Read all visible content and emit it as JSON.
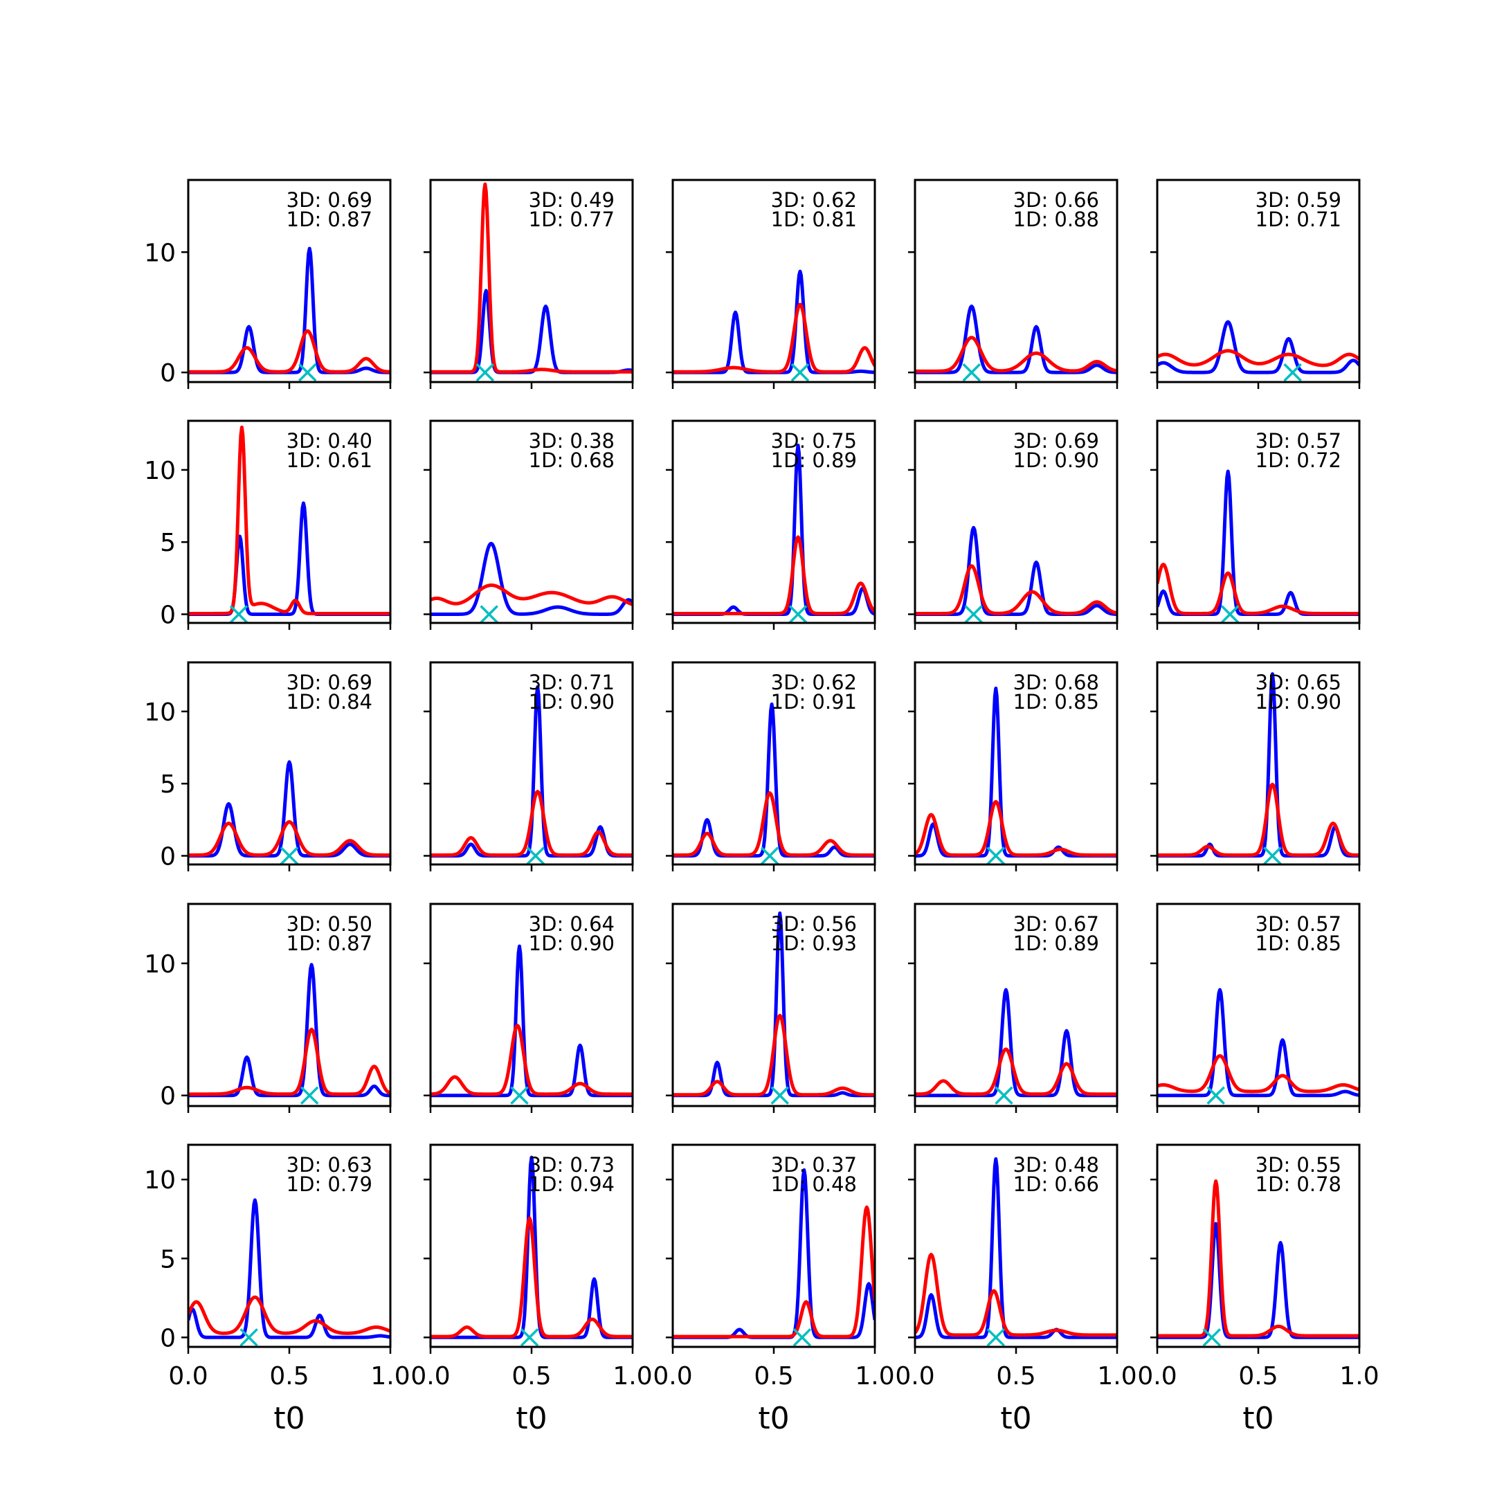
{
  "figure": {
    "xlabel": "t0",
    "colors": {
      "blue": "#0000ff",
      "red": "#ff0000",
      "marker": "#00bfbf",
      "frame": "#000000"
    },
    "x_ticks": [
      "0.0",
      "0.5",
      "1.0"
    ],
    "row_y_ticks": [
      [
        "0",
        "10"
      ],
      [
        "0",
        "5",
        "10"
      ],
      [
        "0",
        "5",
        "10"
      ],
      [
        "0",
        "10"
      ],
      [
        "0",
        "5",
        "10"
      ]
    ]
  },
  "chart_data": {
    "type": "line",
    "layout": "5x5 grid of small multiples, shared y-axis per row, shared x-axis per column",
    "x_range": [
      0,
      1
    ],
    "row_y_ranges": [
      [
        -0.8,
        16
      ],
      [
        -0.6,
        13.4
      ],
      [
        -0.6,
        13.4
      ],
      [
        -0.8,
        14.5
      ],
      [
        -0.6,
        12.2
      ]
    ],
    "row_y_tick_values": [
      [
        0,
        10
      ],
      [
        0,
        5,
        10
      ],
      [
        0,
        5,
        10
      ],
      [
        0,
        10
      ],
      [
        0,
        5,
        10
      ]
    ],
    "series_colors": [
      "blue",
      "red"
    ],
    "panels": [
      {
        "row": 0,
        "col": 0,
        "label_3d": "3D: 0.69",
        "label_1d": "1D: 0.87",
        "marker_x": 0.59,
        "blue": [
          [
            0.3,
            3.8,
            0.022
          ],
          [
            0.6,
            10.3,
            0.017
          ],
          [
            0.88,
            0.35,
            0.03
          ]
        ],
        "red": [
          [
            0.29,
            2.0,
            0.04
          ],
          [
            0.59,
            3.4,
            0.035
          ],
          [
            0.88,
            1.1,
            0.035
          ]
        ],
        "red_base": 0.05
      },
      {
        "row": 0,
        "col": 1,
        "label_3d": "3D: 0.49",
        "label_1d": "1D: 0.77",
        "marker_x": 0.27,
        "blue": [
          [
            0.275,
            6.8,
            0.017
          ],
          [
            0.57,
            5.5,
            0.022
          ],
          [
            0.98,
            0.2,
            0.03
          ]
        ],
        "red": [
          [
            0.27,
            15.6,
            0.018
          ],
          [
            0.55,
            0.2,
            0.05
          ]
        ],
        "red_base": 0.05
      },
      {
        "row": 0,
        "col": 2,
        "label_3d": "3D: 0.62",
        "label_1d": "1D: 0.81",
        "marker_x": 0.63,
        "blue": [
          [
            0.31,
            5.0,
            0.018
          ],
          [
            0.63,
            8.4,
            0.018
          ],
          [
            0.93,
            0.1,
            0.03
          ]
        ],
        "red": [
          [
            0.3,
            0.35,
            0.06
          ],
          [
            0.63,
            5.6,
            0.03
          ],
          [
            0.95,
            2.0,
            0.03
          ]
        ],
        "red_base": 0.05
      },
      {
        "row": 0,
        "col": 3,
        "label_3d": "3D: 0.66",
        "label_1d": "1D: 0.88",
        "marker_x": 0.28,
        "blue": [
          [
            0.28,
            5.5,
            0.027
          ],
          [
            0.6,
            3.8,
            0.022
          ],
          [
            0.9,
            0.6,
            0.03
          ]
        ],
        "red": [
          [
            0.28,
            2.8,
            0.045
          ],
          [
            0.6,
            1.5,
            0.06
          ],
          [
            0.9,
            0.8,
            0.04
          ]
        ],
        "red_base": 0.1
      },
      {
        "row": 0,
        "col": 4,
        "label_3d": "3D: 0.59",
        "label_1d": "1D: 0.71",
        "marker_x": 0.67,
        "blue": [
          [
            0.03,
            0.8,
            0.04
          ],
          [
            0.35,
            4.2,
            0.03
          ],
          [
            0.65,
            2.8,
            0.025
          ],
          [
            0.97,
            1.0,
            0.03
          ]
        ],
        "red": [
          [
            0.04,
            1.0,
            0.06
          ],
          [
            0.35,
            1.3,
            0.07
          ],
          [
            0.65,
            1.0,
            0.07
          ],
          [
            0.95,
            1.0,
            0.05
          ]
        ],
        "red_base": 0.5
      },
      {
        "row": 1,
        "col": 0,
        "label_3d": "3D: 0.40",
        "label_1d": "1D: 0.61",
        "marker_x": 0.25,
        "blue": [
          [
            0.255,
            5.4,
            0.016
          ],
          [
            0.57,
            7.7,
            0.017
          ]
        ],
        "red": [
          [
            0.265,
            12.7,
            0.017
          ],
          [
            0.36,
            0.7,
            0.06
          ],
          [
            0.53,
            0.9,
            0.02
          ]
        ],
        "red_base": 0.05
      },
      {
        "row": 1,
        "col": 1,
        "label_3d": "3D: 0.38",
        "label_1d": "1D: 0.68",
        "marker_x": 0.29,
        "blue": [
          [
            0.3,
            4.9,
            0.04
          ],
          [
            0.63,
            0.5,
            0.06
          ],
          [
            0.98,
            1.0,
            0.03
          ]
        ],
        "red": [
          [
            0.03,
            0.6,
            0.05
          ],
          [
            0.3,
            1.5,
            0.08
          ],
          [
            0.6,
            1.0,
            0.1
          ],
          [
            0.9,
            0.7,
            0.06
          ]
        ],
        "red_base": 0.5
      },
      {
        "row": 1,
        "col": 2,
        "label_3d": "3D: 0.75",
        "label_1d": "1D: 0.89",
        "marker_x": 0.62,
        "blue": [
          [
            0.3,
            0.5,
            0.02
          ],
          [
            0.62,
            11.7,
            0.016
          ],
          [
            0.94,
            1.8,
            0.02
          ]
        ],
        "red": [
          [
            0.62,
            5.3,
            0.025
          ],
          [
            0.93,
            2.1,
            0.03
          ]
        ],
        "red_base": 0.05
      },
      {
        "row": 1,
        "col": 3,
        "label_3d": "3D: 0.69",
        "label_1d": "1D: 0.90",
        "marker_x": 0.29,
        "blue": [
          [
            0.29,
            6.0,
            0.022
          ],
          [
            0.6,
            3.6,
            0.022
          ],
          [
            0.9,
            0.6,
            0.03
          ]
        ],
        "red": [
          [
            0.28,
            3.3,
            0.035
          ],
          [
            0.58,
            1.5,
            0.05
          ],
          [
            0.9,
            0.8,
            0.04
          ]
        ],
        "red_base": 0.05
      },
      {
        "row": 1,
        "col": 4,
        "label_3d": "3D: 0.57",
        "label_1d": "1D: 0.72",
        "marker_x": 0.36,
        "blue": [
          [
            0.03,
            1.6,
            0.02
          ],
          [
            0.35,
            9.9,
            0.017
          ],
          [
            0.66,
            1.5,
            0.02
          ]
        ],
        "red": [
          [
            0.03,
            3.4,
            0.03
          ],
          [
            0.35,
            2.8,
            0.03
          ],
          [
            0.62,
            0.5,
            0.05
          ]
        ],
        "red_base": 0.05
      },
      {
        "row": 2,
        "col": 0,
        "label_3d": "3D: 0.69",
        "label_1d": "1D: 0.84",
        "marker_x": 0.5,
        "blue": [
          [
            0.2,
            3.6,
            0.025
          ],
          [
            0.5,
            6.5,
            0.02
          ],
          [
            0.8,
            0.8,
            0.03
          ]
        ],
        "red": [
          [
            0.2,
            2.2,
            0.04
          ],
          [
            0.5,
            2.3,
            0.04
          ],
          [
            0.8,
            1.0,
            0.04
          ]
        ],
        "red_base": 0.05
      },
      {
        "row": 2,
        "col": 1,
        "label_3d": "3D: 0.71",
        "label_1d": "1D: 0.90",
        "marker_x": 0.52,
        "blue": [
          [
            0.2,
            0.8,
            0.02
          ],
          [
            0.53,
            11.7,
            0.016
          ],
          [
            0.84,
            2.0,
            0.02
          ]
        ],
        "red": [
          [
            0.2,
            1.2,
            0.03
          ],
          [
            0.53,
            4.4,
            0.03
          ],
          [
            0.83,
            1.6,
            0.03
          ]
        ],
        "red_base": 0.05
      },
      {
        "row": 2,
        "col": 2,
        "label_3d": "3D: 0.62",
        "label_1d": "1D: 0.91",
        "marker_x": 0.48,
        "blue": [
          [
            0.17,
            2.5,
            0.02
          ],
          [
            0.49,
            10.5,
            0.017
          ],
          [
            0.8,
            0.6,
            0.02
          ]
        ],
        "red": [
          [
            0.17,
            1.5,
            0.03
          ],
          [
            0.48,
            4.3,
            0.03
          ],
          [
            0.78,
            1.0,
            0.035
          ]
        ],
        "red_base": 0.05
      },
      {
        "row": 2,
        "col": 3,
        "label_3d": "3D: 0.68",
        "label_1d": "1D: 0.85",
        "marker_x": 0.4,
        "blue": [
          [
            0.09,
            2.2,
            0.02
          ],
          [
            0.4,
            11.6,
            0.016
          ],
          [
            0.71,
            0.6,
            0.02
          ]
        ],
        "red": [
          [
            0.08,
            2.8,
            0.03
          ],
          [
            0.4,
            3.7,
            0.03
          ],
          [
            0.72,
            0.4,
            0.04
          ]
        ],
        "red_base": 0.05
      },
      {
        "row": 2,
        "col": 4,
        "label_3d": "3D: 0.65",
        "label_1d": "1D: 0.90",
        "marker_x": 0.57,
        "blue": [
          [
            0.26,
            0.8,
            0.015
          ],
          [
            0.57,
            12.6,
            0.016
          ],
          [
            0.88,
            2.0,
            0.02
          ]
        ],
        "red": [
          [
            0.25,
            0.6,
            0.03
          ],
          [
            0.57,
            4.9,
            0.028
          ],
          [
            0.87,
            2.2,
            0.03
          ]
        ],
        "red_base": 0.05
      },
      {
        "row": 3,
        "col": 0,
        "label_3d": "3D: 0.50",
        "label_1d": "1D: 0.87",
        "marker_x": 0.6,
        "blue": [
          [
            0.29,
            2.9,
            0.02
          ],
          [
            0.61,
            9.9,
            0.02
          ],
          [
            0.92,
            0.7,
            0.02
          ]
        ],
        "red": [
          [
            0.29,
            0.5,
            0.05
          ],
          [
            0.61,
            4.9,
            0.03
          ],
          [
            0.92,
            2.1,
            0.03
          ]
        ],
        "red_base": 0.1
      },
      {
        "row": 3,
        "col": 1,
        "label_3d": "3D: 0.64",
        "label_1d": "1D: 0.90",
        "marker_x": 0.44,
        "blue": [
          [
            0.44,
            11.3,
            0.016
          ],
          [
            0.74,
            3.8,
            0.018
          ]
        ],
        "red": [
          [
            0.12,
            1.3,
            0.035
          ],
          [
            0.43,
            5.2,
            0.03
          ],
          [
            0.74,
            0.8,
            0.04
          ]
        ],
        "red_base": 0.1
      },
      {
        "row": 3,
        "col": 2,
        "label_3d": "3D: 0.56",
        "label_1d": "1D: 0.93",
        "marker_x": 0.53,
        "blue": [
          [
            0.22,
            2.5,
            0.017
          ],
          [
            0.53,
            13.8,
            0.016
          ],
          [
            0.84,
            0.2,
            0.02
          ]
        ],
        "red": [
          [
            0.22,
            1.0,
            0.03
          ],
          [
            0.53,
            6.0,
            0.03
          ],
          [
            0.84,
            0.5,
            0.04
          ]
        ],
        "red_base": 0.05
      },
      {
        "row": 3,
        "col": 3,
        "label_3d": "3D: 0.67",
        "label_1d": "1D: 0.89",
        "marker_x": 0.44,
        "blue": [
          [
            0.45,
            8.0,
            0.02
          ],
          [
            0.75,
            4.9,
            0.02
          ]
        ],
        "red": [
          [
            0.14,
            1.0,
            0.035
          ],
          [
            0.45,
            3.4,
            0.035
          ],
          [
            0.75,
            2.3,
            0.035
          ]
        ],
        "red_base": 0.1
      },
      {
        "row": 3,
        "col": 4,
        "label_3d": "3D: 0.57",
        "label_1d": "1D: 0.85",
        "marker_x": 0.29,
        "blue": [
          [
            0.31,
            8.0,
            0.02
          ],
          [
            0.62,
            4.2,
            0.02
          ],
          [
            0.93,
            0.3,
            0.03
          ]
        ],
        "red": [
          [
            0.03,
            0.5,
            0.05
          ],
          [
            0.31,
            2.7,
            0.04
          ],
          [
            0.62,
            1.2,
            0.04
          ],
          [
            0.92,
            0.5,
            0.05
          ]
        ],
        "red_base": 0.3
      },
      {
        "row": 4,
        "col": 0,
        "label_3d": "3D: 0.63",
        "label_1d": "1D: 0.79",
        "marker_x": 0.3,
        "blue": [
          [
            0.02,
            1.8,
            0.02
          ],
          [
            0.33,
            8.7,
            0.02
          ],
          [
            0.65,
            1.4,
            0.02
          ],
          [
            0.95,
            0.1,
            0.03
          ]
        ],
        "red": [
          [
            0.04,
            2.0,
            0.04
          ],
          [
            0.33,
            2.3,
            0.045
          ],
          [
            0.63,
            0.8,
            0.05
          ],
          [
            0.93,
            0.4,
            0.05
          ]
        ],
        "red_base": 0.25
      },
      {
        "row": 4,
        "col": 1,
        "label_3d": "3D: 0.73",
        "label_1d": "1D: 0.94",
        "marker_x": 0.49,
        "blue": [
          [
            0.5,
            11.4,
            0.017
          ],
          [
            0.81,
            3.7,
            0.017
          ]
        ],
        "red": [
          [
            0.18,
            0.6,
            0.03
          ],
          [
            0.49,
            7.5,
            0.025
          ],
          [
            0.8,
            1.1,
            0.035
          ]
        ],
        "red_base": 0.05
      },
      {
        "row": 4,
        "col": 2,
        "label_3d": "3D: 0.37",
        "label_1d": "1D: 0.48",
        "marker_x": 0.64,
        "blue": [
          [
            0.33,
            0.5,
            0.02
          ],
          [
            0.65,
            10.6,
            0.018
          ],
          [
            0.97,
            3.4,
            0.02
          ]
        ],
        "red": [
          [
            0.66,
            2.2,
            0.025
          ],
          [
            0.96,
            8.2,
            0.025
          ]
        ],
        "red_base": 0.05
      },
      {
        "row": 4,
        "col": 3,
        "label_3d": "3D: 0.48",
        "label_1d": "1D: 0.66",
        "marker_x": 0.4,
        "blue": [
          [
            0.08,
            2.7,
            0.02
          ],
          [
            0.4,
            11.3,
            0.017
          ],
          [
            0.7,
            0.5,
            0.02
          ]
        ],
        "red": [
          [
            0.08,
            5.1,
            0.03
          ],
          [
            0.39,
            2.8,
            0.03
          ],
          [
            0.7,
            0.3,
            0.05
          ]
        ],
        "red_base": 0.15
      },
      {
        "row": 4,
        "col": 4,
        "label_3d": "3D: 0.55",
        "label_1d": "1D: 0.78",
        "marker_x": 0.27,
        "blue": [
          [
            0.29,
            7.2,
            0.018
          ],
          [
            0.61,
            6.0,
            0.02
          ]
        ],
        "red": [
          [
            0.29,
            9.8,
            0.02
          ],
          [
            0.6,
            0.6,
            0.04
          ]
        ],
        "red_base": 0.1
      }
    ]
  }
}
